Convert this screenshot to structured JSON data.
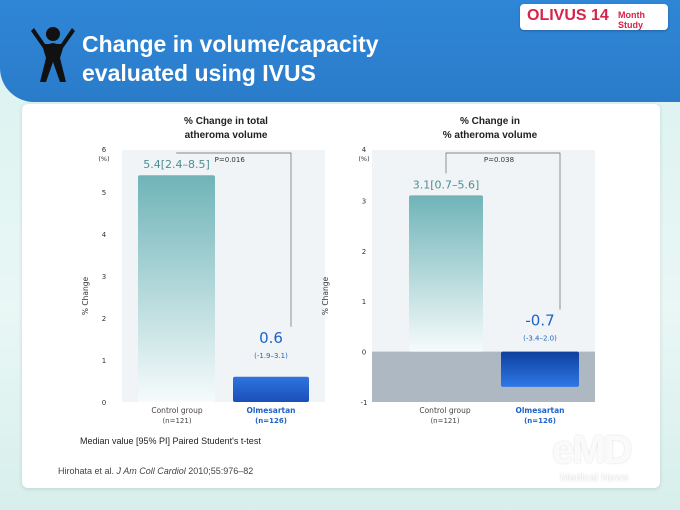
{
  "header": {
    "title_line1": "Change in volume/capacity",
    "title_line2": "evaluated using IVUS",
    "logo_main": "OLIVUS 14",
    "logo_sub": "Month Study"
  },
  "footnote": "Median value [95% PI] Paired Student's t-test",
  "reference": {
    "authors": "Hirohata et al.",
    "journal": "J Am Coll Cardiol",
    "citation": "2010;55:976–82"
  },
  "watermark": {
    "logo": "eMD",
    "caption": "Medical News"
  },
  "colors": {
    "header_blue": "#2a7cca",
    "control_bar": "#7fbfc2",
    "olmesartan_bar": "#1d5fd0",
    "negative_band": "#aeb8c2"
  },
  "chart_data": [
    {
      "type": "bar",
      "title_line1": "% Change in total",
      "title_line2": "atheroma volume",
      "ylabel": "% Change",
      "yunit": "(%)",
      "ylim": [
        0,
        6
      ],
      "yticks": [
        0,
        1,
        2,
        3,
        4,
        5,
        6
      ],
      "categories": [
        {
          "name": "Control group",
          "n": "(n=121)"
        },
        {
          "name": "Olmesartan",
          "n": "(n=126)"
        }
      ],
      "values": [
        5.4,
        0.6
      ],
      "value_labels": [
        "5.4[2.4–8.5]",
        "0.6"
      ],
      "ci_labels": [
        "",
        "(-1.9–3.1)"
      ],
      "p_value": "P=0.016"
    },
    {
      "type": "bar",
      "title_line1": "% Change in",
      "title_line2": "% atheroma volume",
      "ylabel": "% Change",
      "yunit": "(%)",
      "ylim": [
        -1,
        4
      ],
      "yticks": [
        -1,
        0,
        1,
        2,
        3,
        4
      ],
      "categories": [
        {
          "name": "Control group",
          "n": "(n=121)"
        },
        {
          "name": "Olmesartan",
          "n": "(n=126)"
        }
      ],
      "values": [
        3.1,
        -0.7
      ],
      "value_labels": [
        "3.1[0.7–5.6]",
        "-0.7"
      ],
      "ci_labels": [
        "",
        "(-3.4–2.0)"
      ],
      "p_value": "P=0.038"
    }
  ]
}
